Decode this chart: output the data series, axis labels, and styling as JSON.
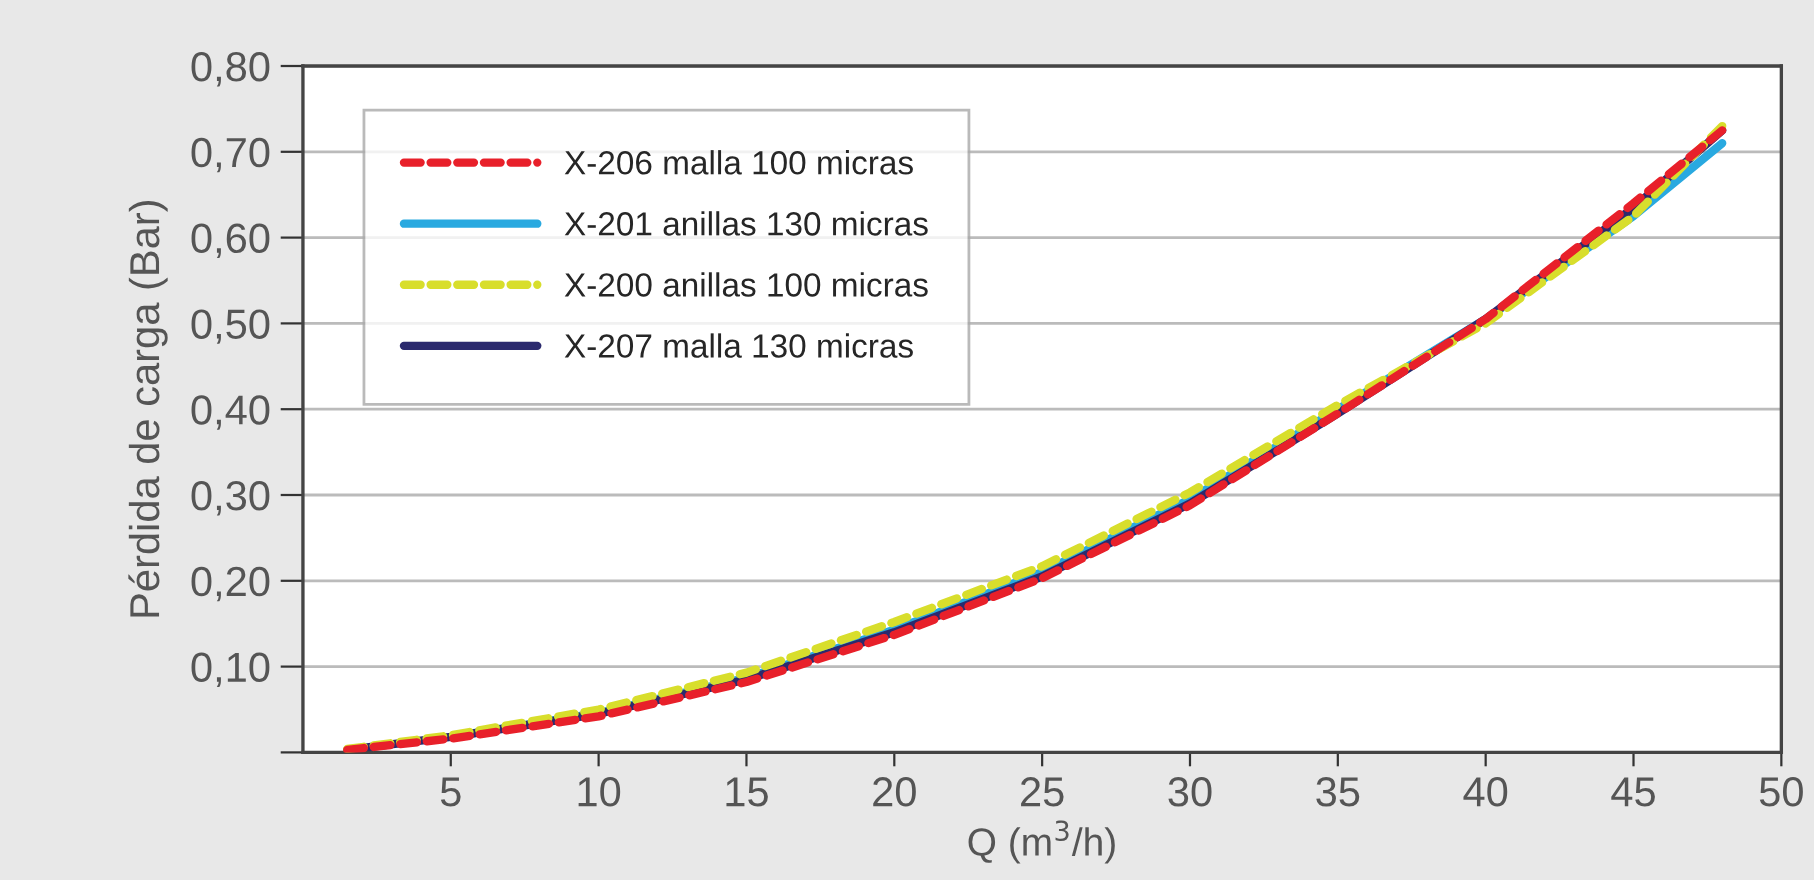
{
  "chart_data": {
    "type": "line",
    "xlabel": "Q (m$^{3}$/h)",
    "ylabel": "Pérdida de carga (Bar)",
    "x": [
      1.5,
      5,
      10,
      15,
      20,
      25,
      30,
      35,
      40,
      45,
      48
    ],
    "series": [
      {
        "name": "X-206 malla 100 micras",
        "color": "#e8202a",
        "line_style": "dashed",
        "values": [
          0.003,
          0.016,
          0.042,
          0.082,
          0.137,
          0.203,
          0.288,
          0.395,
          0.505,
          0.64,
          0.725
        ]
      },
      {
        "name": "X-201 anillas 130 micras",
        "color": "#29a9e0",
        "line_style": "solid",
        "values": [
          null,
          0.018,
          0.046,
          0.087,
          0.143,
          0.21,
          0.295,
          0.4,
          0.505,
          0.625,
          0.71
        ]
      },
      {
        "name": "X-200 anillas 100 micras",
        "color": "#d8de2c",
        "line_style": "dashed",
        "values": [
          0.004,
          0.02,
          0.05,
          0.093,
          0.152,
          0.217,
          0.303,
          0.405,
          0.5,
          0.625,
          0.73
        ]
      },
      {
        "name": "X-207 malla 130 micras",
        "color": "#2b2a6e",
        "line_style": "solid",
        "values": [
          0.003,
          0.018,
          0.045,
          0.085,
          0.14,
          0.205,
          0.29,
          0.395,
          0.505,
          0.635,
          0.725
        ]
      }
    ],
    "xlim": [
      0,
      50
    ],
    "xticks": [
      5,
      10,
      15,
      20,
      25,
      30,
      35,
      40,
      45,
      50
    ],
    "ylim": [
      0,
      0.8
    ],
    "yticks": [
      {
        "value": 0,
        "label": null
      },
      {
        "value": 0.1,
        "label": "0,10"
      },
      {
        "value": 0.2,
        "label": "0,20"
      },
      {
        "value": 0.3,
        "label": "0,30"
      },
      {
        "value": 0.4,
        "label": "0,40"
      },
      {
        "value": 0.5,
        "label": "0,50"
      },
      {
        "value": 0.6,
        "label": "0,60"
      },
      {
        "value": 0.7,
        "label": "0,70"
      },
      {
        "value": 0.8,
        "label": "0,80"
      }
    ],
    "grid": "y",
    "legend": "top left",
    "marker": "none"
  }
}
